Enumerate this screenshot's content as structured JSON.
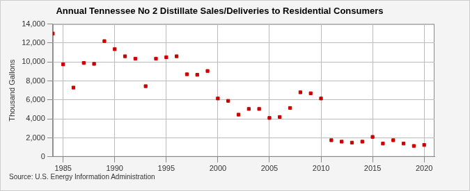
{
  "chart_data": {
    "type": "scatter",
    "title": "Annual Tennessee No 2 Distillate Sales/Deliveries to Residential Consumers",
    "y_label": "Thousand Gallons",
    "source": "Source: U.S. Energy Information Administration",
    "x": [
      1984,
      1985,
      1986,
      1987,
      1988,
      1989,
      1990,
      1991,
      1992,
      1993,
      1994,
      1995,
      1996,
      1997,
      1998,
      1999,
      2000,
      2001,
      2002,
      2003,
      2004,
      2005,
      2006,
      2007,
      2008,
      2009,
      2010,
      2011,
      2012,
      2013,
      2014,
      2015,
      2016,
      2017,
      2018,
      2019,
      2020
    ],
    "values": [
      13000,
      9750,
      7300,
      9900,
      9800,
      12200,
      11350,
      10600,
      10350,
      7450,
      10350,
      10500,
      10600,
      8700,
      8650,
      9050,
      6150,
      5900,
      4450,
      5050,
      5050,
      4100,
      4200,
      5150,
      6800,
      6700,
      6150,
      1750,
      1600,
      1500,
      1600,
      2100,
      1400,
      1750,
      1400,
      1150,
      1250
    ],
    "color": "#cc0000",
    "marker": "square",
    "xlim": [
      1984,
      2021
    ],
    "xticks": [
      1985,
      1990,
      1995,
      2000,
      2005,
      2010,
      2015,
      2020
    ],
    "ylim": [
      0,
      14000
    ],
    "yticks": [
      0,
      {
        "value": 2000,
        "label": "2,000"
      },
      {
        "value": 4000,
        "label": "4,000"
      },
      {
        "value": 6000,
        "label": "6,000"
      },
      {
        "value": 8000,
        "label": "8,000"
      },
      {
        "value": 10000,
        "label": "10,000"
      },
      {
        "value": 12000,
        "label": "12,000"
      },
      {
        "value": 14000,
        "label": "14,000"
      }
    ],
    "grid": true
  }
}
